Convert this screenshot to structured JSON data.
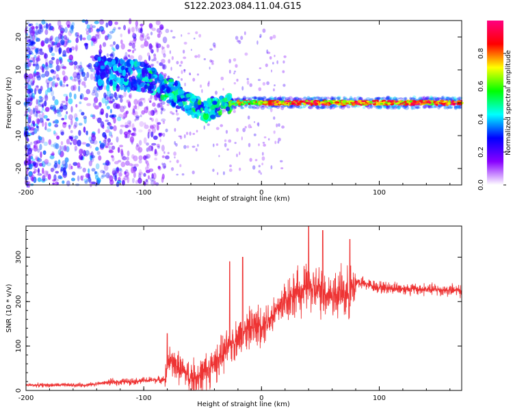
{
  "title": "S122.2023.084.11.04.G15",
  "chart_data": [
    {
      "type": "heatmap",
      "panel": "spectrogram",
      "xlabel": "Height of straight line (km)",
      "ylabel": "Frequency (Hz)",
      "xlim": [
        -200,
        170
      ],
      "ylim": [
        -25,
        25
      ],
      "xticks": [
        -200,
        -100,
        0,
        100
      ],
      "yticks": [
        -20,
        -10,
        0,
        10,
        20
      ],
      "colorbar": {
        "label": "Normalized spectral amplitude",
        "range": [
          0,
          1
        ],
        "ticks": [
          "0.0",
          "0.2",
          "0.4",
          "0.6",
          "0.8"
        ],
        "colors": [
          "#ffffff",
          "#8800ff",
          "#0000ff",
          "#00ffff",
          "#00ff00",
          "#ffff00",
          "#ff0000",
          "#ff0080"
        ]
      },
      "features": [
        {
          "label": "scattered noise",
          "x_range": [
            -200,
            -100
          ],
          "freq_range": [
            -25,
            25
          ],
          "amplitude": [
            0.1,
            0.4
          ]
        },
        {
          "label": "converging signal",
          "x_range": [
            -140,
            -25
          ],
          "freq_track": [
            [
              -140,
              9
            ],
            [
              -100,
              8
            ],
            [
              -70,
              2
            ],
            [
              -50,
              -3
            ],
            [
              -35,
              -1
            ],
            [
              -25,
              0
            ]
          ]
        },
        {
          "label": "stable carrier",
          "x_range": [
            -25,
            170
          ],
          "freq_hz": 0,
          "amplitude": [
            0.6,
            1.0
          ]
        }
      ]
    },
    {
      "type": "line",
      "panel": "snr",
      "xlabel": "Height of straight line (km)",
      "ylabel": "SNR (10 * v/v)",
      "xlim": [
        -200,
        170
      ],
      "ylim": [
        0,
        370
      ],
      "xticks": [
        -200,
        -100,
        0,
        100
      ],
      "yticks": [
        0,
        100,
        200,
        300
      ],
      "color": "#ee3333",
      "trend": {
        "x": [
          -200,
          -150,
          -130,
          -100,
          -81,
          -80,
          -65,
          -60,
          -50,
          -40,
          -30,
          -20,
          -10,
          0,
          10,
          20,
          30,
          40,
          60,
          75,
          80,
          100,
          130,
          170
        ],
        "y": [
          12,
          12,
          18,
          22,
          25,
          70,
          40,
          28,
          35,
          60,
          90,
          120,
          140,
          150,
          170,
          205,
          220,
          230,
          215,
          220,
          245,
          232,
          228,
          225
        ]
      },
      "spike_peaks": [
        {
          "x": -80,
          "y": 128
        },
        {
          "x": -27,
          "y": 290
        },
        {
          "x": -16,
          "y": 300
        },
        {
          "x": 40,
          "y": 370
        },
        {
          "x": 52,
          "y": 360
        },
        {
          "x": 75,
          "y": 340
        }
      ]
    }
  ]
}
